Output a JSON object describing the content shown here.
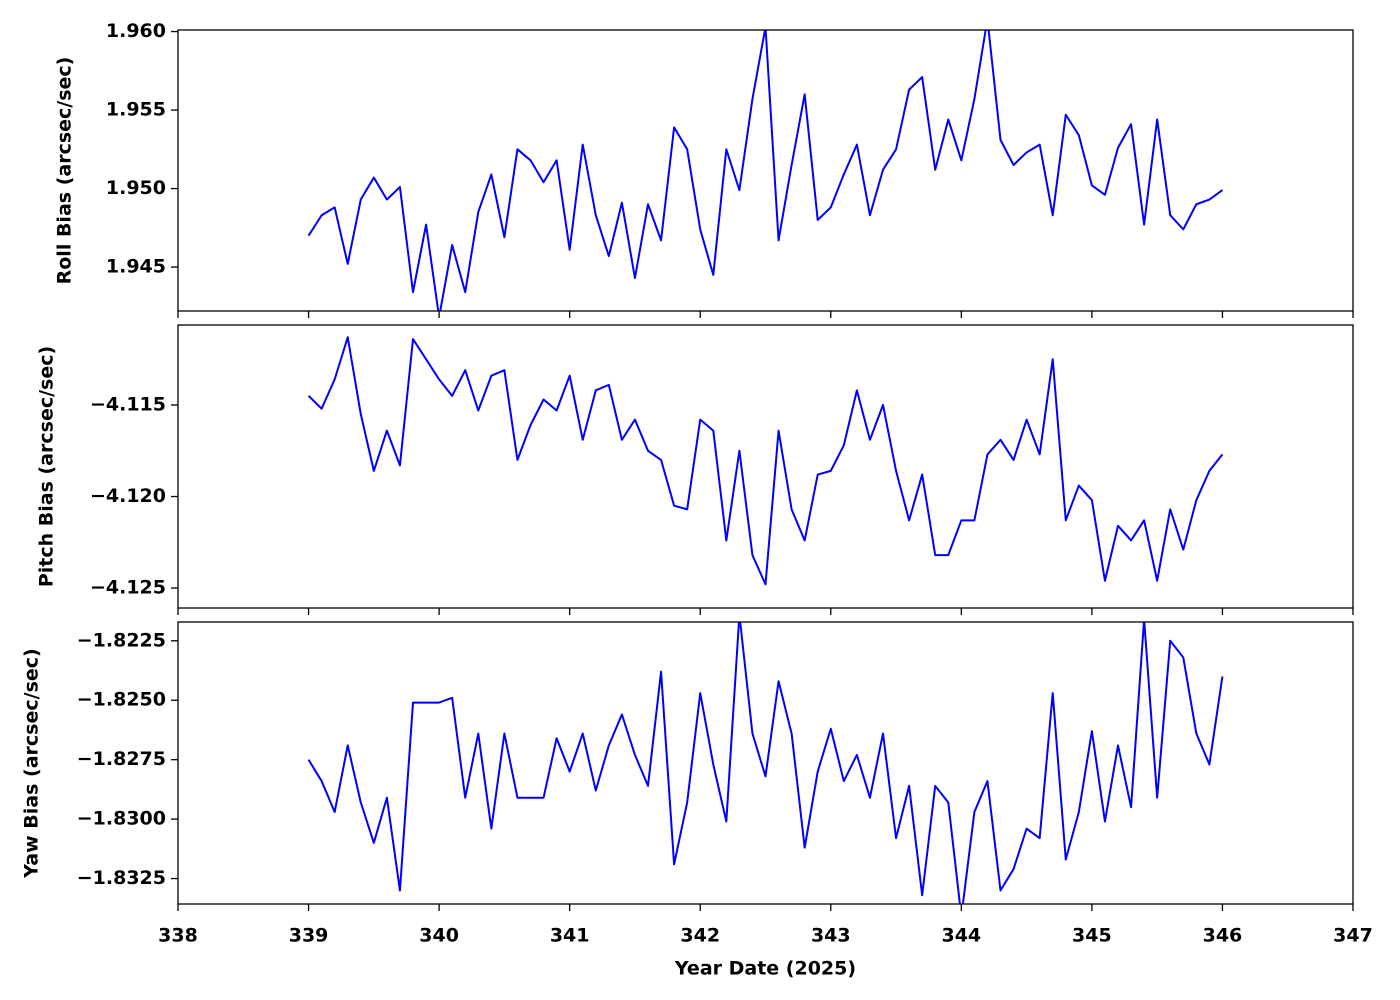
{
  "chart_data": [
    {
      "type": "line",
      "ylabel": "Roll Bias (arcsec/sec)",
      "color": "#0000ff",
      "show_xtick_labels": false,
      "xlim": [
        338,
        347
      ],
      "xticks": [
        338,
        339,
        340,
        341,
        342,
        343,
        344,
        345,
        346,
        347
      ],
      "ylim": [
        1.9422,
        1.9601
      ],
      "yticks": [
        1.945,
        {
          "value": 1.95,
          "label": "1.950"
        },
        1.955,
        {
          "value": 1.96,
          "label": "1.960"
        }
      ],
      "x": [
        339.0,
        339.1,
        339.2,
        339.3,
        339.4,
        339.5,
        339.6,
        339.7,
        339.8,
        339.9,
        340.0,
        340.1,
        340.2,
        340.3,
        340.4,
        340.5,
        340.6,
        340.7,
        340.8,
        340.9,
        341.0,
        341.1,
        341.2,
        341.3,
        341.4,
        341.5,
        341.6,
        341.7,
        341.8,
        341.9,
        342.0,
        342.1,
        342.2,
        342.3,
        342.4,
        342.5,
        342.6,
        342.7,
        342.8,
        342.9,
        343.0,
        343.1,
        343.2,
        343.3,
        343.4,
        343.5,
        343.6,
        343.7,
        343.8,
        343.9,
        344.0,
        344.1,
        344.2,
        344.3,
        344.4,
        344.5,
        344.6,
        344.7,
        344.8,
        344.9,
        345.0,
        345.1,
        345.2,
        345.3,
        345.4,
        345.5,
        345.6,
        345.7,
        345.8,
        345.9,
        346.0
      ],
      "values": [
        1.947,
        1.9483,
        1.9488,
        1.9452,
        1.9493,
        1.9507,
        1.9493,
        1.9501,
        1.9434,
        1.9477,
        1.9418,
        1.9464,
        1.9434,
        1.9485,
        1.9509,
        1.9469,
        1.9525,
        1.9518,
        1.9504,
        1.9518,
        1.9461,
        1.9528,
        1.9483,
        1.9457,
        1.9491,
        1.9443,
        1.949,
        1.9467,
        1.9539,
        1.9525,
        1.9474,
        1.9445,
        1.9525,
        1.9499,
        1.9557,
        1.9603,
        1.9467,
        1.9515,
        1.956,
        1.948,
        1.9488,
        1.9509,
        1.9528,
        1.9483,
        1.9512,
        1.9525,
        1.9563,
        1.9571,
        1.9512,
        1.9544,
        1.9518,
        1.9557,
        1.9608,
        1.9531,
        1.9515,
        1.9523,
        1.9528,
        1.9483,
        1.9547,
        1.9534,
        1.9502,
        1.9496,
        1.9526,
        1.9541,
        1.9477,
        1.9544,
        1.9483,
        1.9474,
        1.949,
        1.9493,
        1.9499
      ]
    },
    {
      "type": "line",
      "ylabel": "Pitch Bias (arcsec/sec)",
      "color": "#0000ff",
      "show_xtick_labels": false,
      "xlim": [
        338,
        347
      ],
      "xticks": [
        338,
        339,
        340,
        341,
        342,
        343,
        344,
        345,
        346,
        347
      ],
      "ylim": [
        -4.12609,
        -4.11063
      ],
      "yticks": [
        {
          "value": -4.125,
          "label": "−4.125"
        },
        {
          "value": -4.12,
          "label": "−4.120"
        },
        {
          "value": -4.115,
          "label": "−4.115"
        }
      ],
      "x": [
        339.0,
        339.1,
        339.2,
        339.3,
        339.4,
        339.5,
        339.6,
        339.7,
        339.8,
        339.9,
        340.0,
        340.1,
        340.2,
        340.3,
        340.4,
        340.5,
        340.6,
        340.7,
        340.8,
        340.9,
        341.0,
        341.1,
        341.2,
        341.3,
        341.4,
        341.5,
        341.6,
        341.7,
        341.8,
        341.9,
        342.0,
        342.1,
        342.2,
        342.3,
        342.4,
        342.5,
        342.6,
        342.7,
        342.8,
        342.9,
        343.0,
        343.1,
        343.2,
        343.3,
        343.4,
        343.5,
        343.6,
        343.7,
        343.8,
        343.9,
        344.0,
        344.1,
        344.2,
        344.3,
        344.4,
        344.5,
        344.6,
        344.7,
        344.8,
        344.9,
        345.0,
        345.1,
        345.2,
        345.3,
        345.4,
        345.5,
        345.6,
        345.7,
        345.8,
        345.9,
        346.0
      ],
      "values": [
        -4.1145,
        -4.1152,
        -4.1136,
        -4.1113,
        -4.1155,
        -4.1186,
        -4.1164,
        -4.1183,
        -4.1114,
        -4.1125,
        -4.1136,
        -4.1145,
        -4.1131,
        -4.1153,
        -4.1134,
        -4.1131,
        -4.118,
        -4.1161,
        -4.1147,
        -4.1153,
        -4.1134,
        -4.1169,
        -4.1142,
        -4.1139,
        -4.1169,
        -4.1158,
        -4.1175,
        -4.118,
        -4.1205,
        -4.1207,
        -4.1158,
        -4.1164,
        -4.1224,
        -4.1175,
        -4.1232,
        -4.1248,
        -4.1164,
        -4.1207,
        -4.1224,
        -4.1188,
        -4.1186,
        -4.1172,
        -4.1142,
        -4.1169,
        -4.115,
        -4.1186,
        -4.1213,
        -4.1188,
        -4.1232,
        -4.1232,
        -4.1213,
        -4.1213,
        -4.1177,
        -4.1169,
        -4.118,
        -4.1158,
        -4.1177,
        -4.1125,
        -4.1213,
        -4.1194,
        -4.1202,
        -4.1246,
        -4.1216,
        -4.1224,
        -4.1213,
        -4.1246,
        -4.1207,
        -4.1229,
        -4.1202,
        -4.1186,
        -4.1177
      ]
    },
    {
      "type": "line",
      "ylabel": "Yaw Bias (arcsec/sec)",
      "xlabel": "Year Date (2025)",
      "color": "#0000ff",
      "show_xtick_labels": true,
      "xlim": [
        338,
        347
      ],
      "xticks": [
        338,
        339,
        340,
        341,
        342,
        343,
        344,
        345,
        346,
        347
      ],
      "ylim": [
        -1.83357,
        -1.82171
      ],
      "yticks": [
        {
          "value": -1.8325,
          "label": "−1.8325"
        },
        {
          "value": -1.83,
          "label": "−1.8300"
        },
        {
          "value": -1.8275,
          "label": "−1.8275"
        },
        {
          "value": -1.825,
          "label": "−1.8250"
        },
        {
          "value": -1.8225,
          "label": "−1.8225"
        }
      ],
      "x": [
        339.0,
        339.1,
        339.2,
        339.3,
        339.4,
        339.5,
        339.6,
        339.7,
        339.8,
        339.9,
        340.0,
        340.1,
        340.2,
        340.3,
        340.4,
        340.5,
        340.6,
        340.7,
        340.8,
        340.9,
        341.0,
        341.1,
        341.2,
        341.3,
        341.4,
        341.5,
        341.6,
        341.7,
        341.8,
        341.9,
        342.0,
        342.1,
        342.2,
        342.3,
        342.4,
        342.5,
        342.6,
        342.7,
        342.8,
        342.9,
        343.0,
        343.1,
        343.2,
        343.3,
        343.4,
        343.5,
        343.6,
        343.7,
        343.8,
        343.9,
        344.0,
        344.1,
        344.2,
        344.3,
        344.4,
        344.5,
        344.6,
        344.7,
        344.8,
        344.9,
        345.0,
        345.1,
        345.2,
        345.3,
        345.4,
        345.5,
        345.6,
        345.7,
        345.8,
        345.9,
        346.0
      ],
      "values": [
        -1.8275,
        -1.8284,
        -1.8297,
        -1.8269,
        -1.8293,
        -1.831,
        -1.8291,
        -1.833,
        -1.8251,
        -1.8251,
        -1.8251,
        -1.8249,
        -1.8291,
        -1.8264,
        -1.8304,
        -1.8264,
        -1.8291,
        -1.8291,
        -1.8291,
        -1.8266,
        -1.828,
        -1.8264,
        -1.8288,
        -1.8269,
        -1.8256,
        -1.8273,
        -1.8286,
        -1.8238,
        -1.8319,
        -1.8293,
        -1.8247,
        -1.8277,
        -1.8301,
        -1.8214,
        -1.8264,
        -1.8282,
        -1.8242,
        -1.8264,
        -1.8312,
        -1.828,
        -1.8262,
        -1.8284,
        -1.8273,
        -1.8291,
        -1.8264,
        -1.8308,
        -1.8286,
        -1.8332,
        -1.8286,
        -1.8293,
        -1.8341,
        -1.8297,
        -1.8284,
        -1.833,
        -1.8321,
        -1.8304,
        -1.8308,
        -1.8247,
        -1.8317,
        -1.8297,
        -1.8263,
        -1.8301,
        -1.8269,
        -1.8295,
        -1.8216,
        -1.8291,
        -1.8225,
        -1.8232,
        -1.8264,
        -1.8277,
        -1.824
      ]
    }
  ]
}
